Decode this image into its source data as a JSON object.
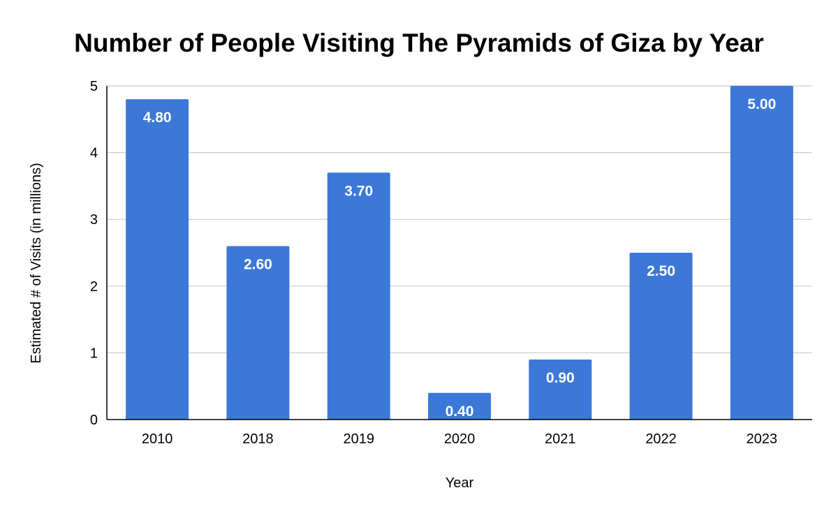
{
  "chart_data": {
    "type": "bar",
    "title": "Number of People Visiting The Pyramids of Giza by Year",
    "xlabel": "Year",
    "ylabel": "Estimated # of Visits (in millions)",
    "categories": [
      "2010",
      "2018",
      "2019",
      "2020",
      "2021",
      "2022",
      "2023"
    ],
    "values": [
      4.8,
      2.6,
      3.7,
      0.4,
      0.9,
      2.5,
      5.0
    ],
    "data_labels": [
      "4.80",
      "2.60",
      "3.70",
      "0.40",
      "0.90",
      "2.50",
      "5.00"
    ],
    "ylim": [
      0,
      5
    ],
    "yticks": [
      "0",
      "1",
      "2",
      "3",
      "4",
      "5"
    ],
    "grid": true,
    "legend": "none",
    "bar_color": "#3c78d8",
    "gridline_color": "#cccccc",
    "axis_color": "#000000"
  }
}
